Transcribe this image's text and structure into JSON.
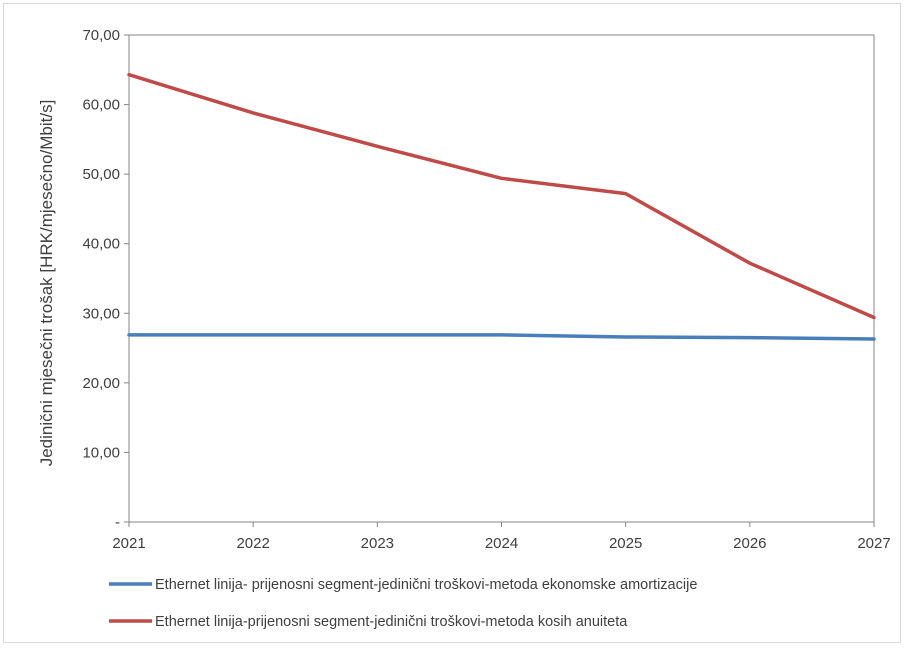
{
  "chart_data": {
    "type": "line",
    "title": "",
    "xlabel": "",
    "ylabel": "Jedinični mjesečni trošak [HRK/mjesečno/Mbit/s]",
    "x": [
      "2021",
      "2022",
      "2023",
      "2024",
      "2025",
      "2026",
      "2027"
    ],
    "ylim": [
      0,
      70
    ],
    "y_ticks": [
      0,
      10,
      20,
      30,
      40,
      50,
      60,
      70
    ],
    "y_tick_labels": [
      "-",
      "10,00",
      "20,00",
      "30,00",
      "40,00",
      "50,00",
      "60,00",
      "70,00"
    ],
    "grid": false,
    "legend_position": "bottom",
    "series": [
      {
        "name": "Ethernet linija- prijenosni segment-jedinični troškovi-metoda ekonomske amortizacije",
        "color": "#4a7ebb",
        "values": [
          26.9,
          26.9,
          26.9,
          26.9,
          26.6,
          26.5,
          26.3
        ]
      },
      {
        "name": "Ethernet linija-prijenosni segment-jedinični troškovi-metoda kosih anuiteta",
        "color": "#be4b48",
        "values": [
          64.3,
          58.8,
          54.0,
          49.4,
          47.2,
          37.2,
          29.4
        ]
      }
    ]
  }
}
